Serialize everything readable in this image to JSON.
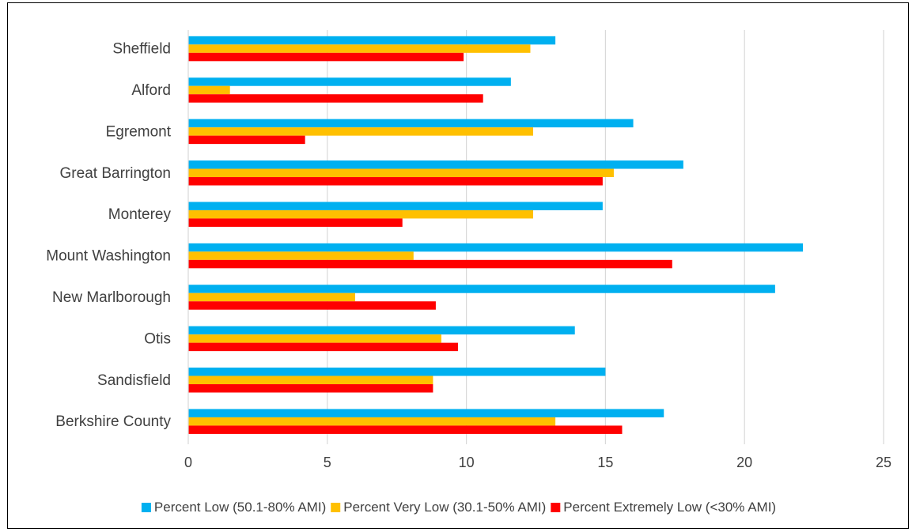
{
  "chart_data": {
    "type": "bar",
    "orientation": "horizontal",
    "categories": [
      "Sheffield",
      "Alford",
      "Egremont",
      "Great Barrington",
      "Monterey",
      "Mount Washington",
      "New Marlborough",
      "Otis",
      "Sandisfield",
      "Berkshire County"
    ],
    "series": [
      {
        "name": "Percent Low (50.1-80% AMI)",
        "color": "#00b0f0",
        "values": [
          13.2,
          11.6,
          16.0,
          17.8,
          14.9,
          22.1,
          21.1,
          13.9,
          15.0,
          17.1
        ]
      },
      {
        "name": "Percent Very Low (30.1-50% AMI)",
        "color": "#ffc000",
        "values": [
          12.3,
          1.5,
          12.4,
          15.3,
          12.4,
          8.1,
          6.0,
          9.1,
          8.8,
          13.2
        ]
      },
      {
        "name": "Percent Extremely Low (<30% AMI)",
        "color": "#ff0000",
        "values": [
          9.9,
          10.6,
          4.2,
          14.9,
          7.7,
          17.4,
          8.9,
          9.7,
          8.8,
          15.6
        ]
      }
    ],
    "xlim": [
      0,
      25
    ],
    "xticks": [
      "0",
      "5",
      "10",
      "15",
      "20",
      "25"
    ],
    "xtick_values": [
      0,
      5,
      10,
      15,
      20,
      25
    ],
    "grid": "vertical",
    "legend_position": "bottom",
    "title": "",
    "xlabel": "",
    "ylabel": ""
  }
}
